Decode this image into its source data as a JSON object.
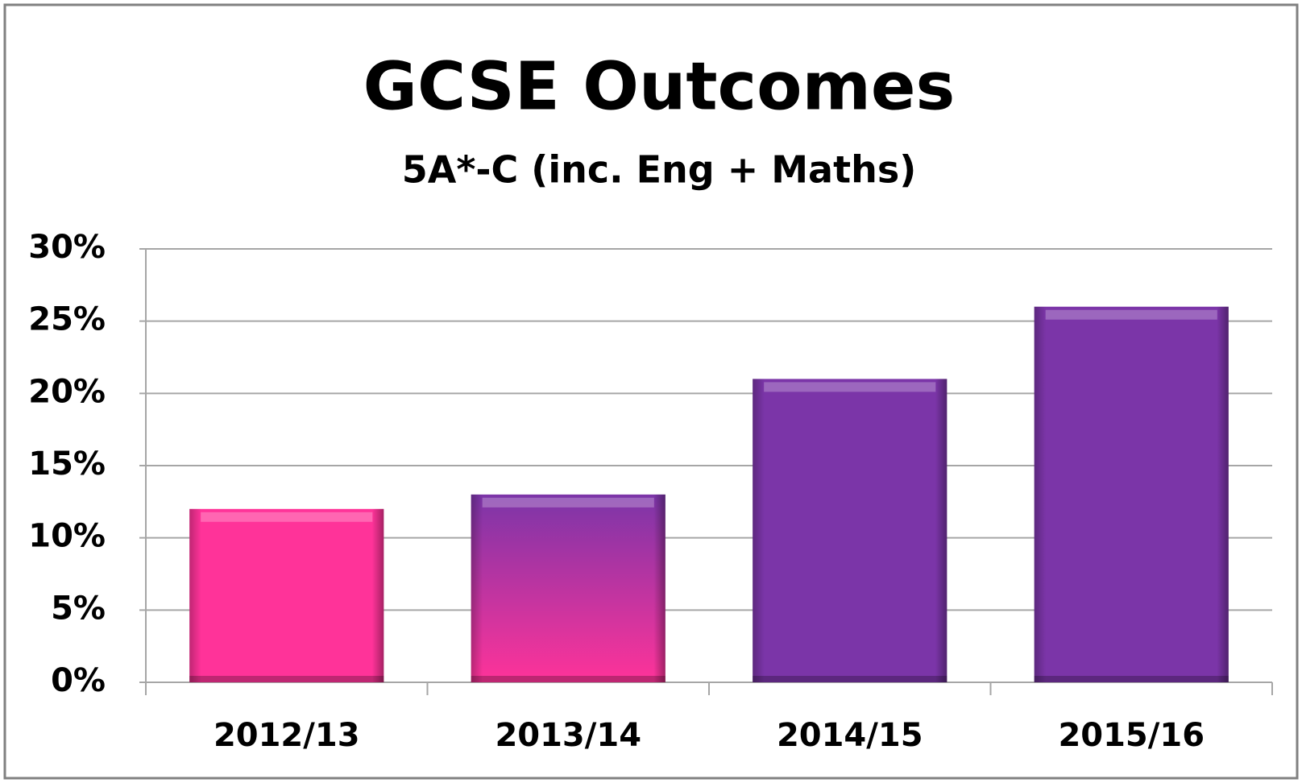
{
  "chart_data": {
    "type": "bar",
    "title": "GCSE Outcomes",
    "subtitle": "5A*-C (inc. Eng + Maths)",
    "categories": [
      "2012/13",
      "2013/14",
      "2014/15",
      "2015/16"
    ],
    "values": [
      12,
      13,
      21,
      26
    ],
    "colors": [
      [
        "#ff3399"
      ],
      [
        "#7b35a8",
        "#ff3399"
      ],
      [
        "#7b35a8"
      ],
      [
        "#7b35a8"
      ]
    ],
    "ylim": [
      0,
      30
    ],
    "yticks": [
      {
        "value": 0,
        "label": "0%"
      },
      {
        "value": 5,
        "label": "5%"
      },
      {
        "value": 10,
        "label": "10%"
      },
      {
        "value": 15,
        "label": "15%"
      },
      {
        "value": 20,
        "label": "20%"
      },
      {
        "value": 25,
        "label": "25%"
      },
      {
        "value": 30,
        "label": "30%"
      }
    ],
    "grid": true
  }
}
